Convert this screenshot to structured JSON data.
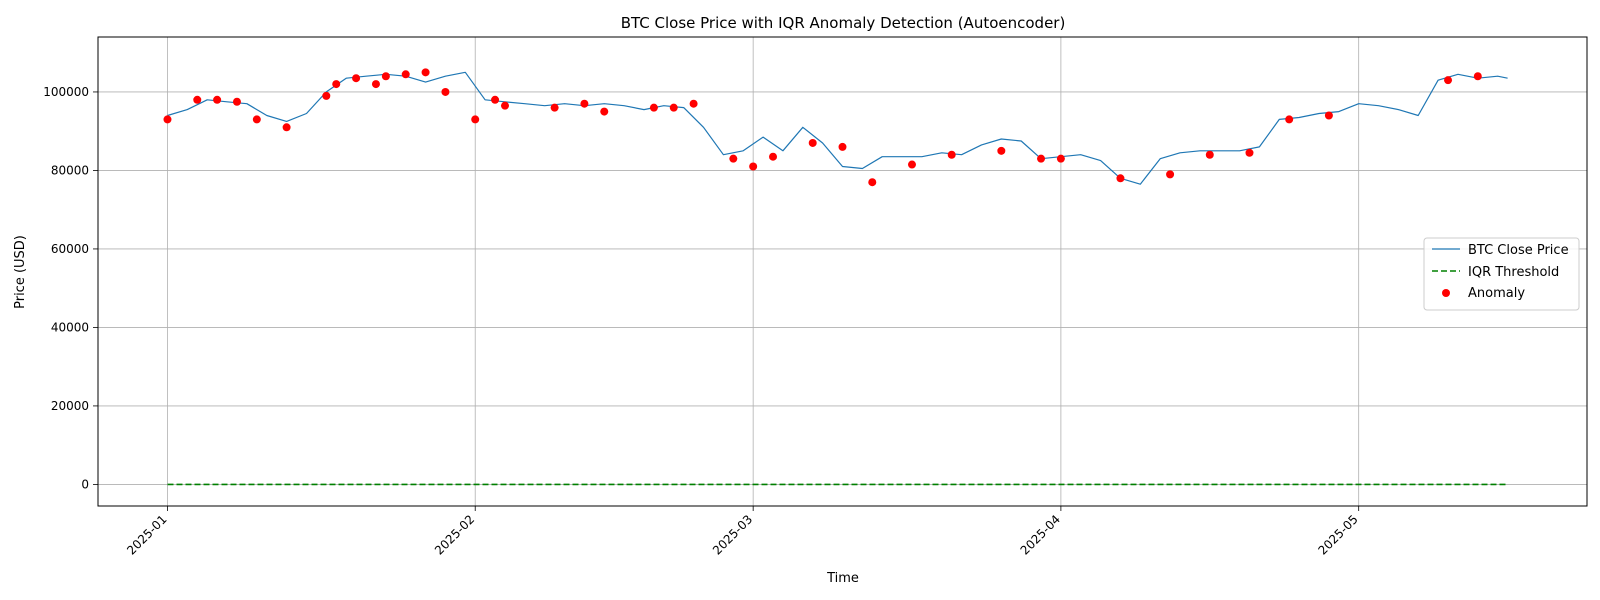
{
  "chart_data": {
    "type": "line",
    "title": "BTC Close Price with IQR Anomaly Detection (Autoencoder)",
    "xlabel": "Time",
    "ylabel": "Price (USD)",
    "xlim": [
      "2024-12-25",
      "2025-05-24"
    ],
    "ylim": [
      -5500,
      114000
    ],
    "x_ticks": [
      "2025-01-01",
      "2025-02-01",
      "2025-03-01",
      "2025-04-01",
      "2025-05-01"
    ],
    "x_tick_labels": [
      "2025-01",
      "2025-02",
      "2025-03",
      "2025-04",
      "2025-05"
    ],
    "y_ticks": [
      0,
      20000,
      40000,
      60000,
      80000,
      100000
    ],
    "y_tick_labels": [
      "0",
      "20000",
      "40000",
      "60000",
      "80000",
      "100000"
    ],
    "grid": true,
    "legend_position": "right",
    "colors": {
      "price": "#1f77b4",
      "threshold": "#008000",
      "anomaly": "#ff0000"
    },
    "series": [
      {
        "name": "BTC Close Price",
        "style": "line",
        "x": [
          "2025-01-01",
          "2025-01-03",
          "2025-01-05",
          "2025-01-07",
          "2025-01-09",
          "2025-01-11",
          "2025-01-13",
          "2025-01-15",
          "2025-01-17",
          "2025-01-19",
          "2025-01-21",
          "2025-01-23",
          "2025-01-25",
          "2025-01-27",
          "2025-01-29",
          "2025-01-31",
          "2025-02-02",
          "2025-02-04",
          "2025-02-06",
          "2025-02-08",
          "2025-02-10",
          "2025-02-12",
          "2025-02-14",
          "2025-02-16",
          "2025-02-18",
          "2025-02-20",
          "2025-02-22",
          "2025-02-24",
          "2025-02-26",
          "2025-02-28",
          "2025-03-02",
          "2025-03-04",
          "2025-03-06",
          "2025-03-08",
          "2025-03-10",
          "2025-03-12",
          "2025-03-14",
          "2025-03-16",
          "2025-03-18",
          "2025-03-20",
          "2025-03-22",
          "2025-03-24",
          "2025-03-26",
          "2025-03-28",
          "2025-03-30",
          "2025-04-01",
          "2025-04-03",
          "2025-04-05",
          "2025-04-07",
          "2025-04-09",
          "2025-04-11",
          "2025-04-13",
          "2025-04-15",
          "2025-04-17",
          "2025-04-19",
          "2025-04-21",
          "2025-04-23",
          "2025-04-25",
          "2025-04-27",
          "2025-04-29",
          "2025-05-01",
          "2025-05-03",
          "2025-05-05",
          "2025-05-07",
          "2025-05-09",
          "2025-05-11",
          "2025-05-13",
          "2025-05-15",
          "2025-05-16"
        ],
        "values": [
          94000,
          95500,
          98000,
          97500,
          97000,
          94000,
          92500,
          94500,
          100000,
          103500,
          104000,
          104500,
          104000,
          102500,
          104000,
          105000,
          98000,
          97500,
          97000,
          96500,
          97000,
          96500,
          97000,
          96500,
          95500,
          96500,
          96000,
          91000,
          84000,
          85000,
          88500,
          85000,
          91000,
          87000,
          81000,
          80500,
          83500,
          83500,
          83500,
          84500,
          84000,
          86500,
          88000,
          87500,
          83000,
          83500,
          84000,
          82500,
          78000,
          76500,
          83000,
          84500,
          85000,
          85000,
          85000,
          86000,
          93000,
          93500,
          94500,
          95000,
          97000,
          96500,
          95500,
          94000,
          103000,
          104500,
          103500,
          104000,
          103500
        ]
      },
      {
        "name": "IQR Threshold",
        "style": "dashed",
        "x": [
          "2025-01-01",
          "2025-05-16"
        ],
        "values": [
          0,
          0
        ]
      },
      {
        "name": "Anomaly",
        "style": "scatter",
        "x": [
          "2025-01-01",
          "2025-01-04",
          "2025-01-06",
          "2025-01-08",
          "2025-01-10",
          "2025-01-13",
          "2025-01-17",
          "2025-01-18",
          "2025-01-20",
          "2025-01-22",
          "2025-01-23",
          "2025-01-25",
          "2025-01-27",
          "2025-01-29",
          "2025-02-01",
          "2025-02-03",
          "2025-02-04",
          "2025-02-09",
          "2025-02-12",
          "2025-02-14",
          "2025-02-19",
          "2025-02-21",
          "2025-02-23",
          "2025-02-27",
          "2025-03-01",
          "2025-03-03",
          "2025-03-07",
          "2025-03-10",
          "2025-03-13",
          "2025-03-17",
          "2025-03-21",
          "2025-03-26",
          "2025-03-30",
          "2025-04-01",
          "2025-04-07",
          "2025-04-12",
          "2025-04-16",
          "2025-04-20",
          "2025-04-24",
          "2025-04-28",
          "2025-05-10",
          "2025-05-13"
        ],
        "values": [
          93000,
          98000,
          98000,
          97500,
          93000,
          91000,
          99000,
          102000,
          103500,
          102000,
          104000,
          104500,
          105000,
          100000,
          93000,
          98000,
          96500,
          96000,
          97000,
          95000,
          96000,
          96000,
          97000,
          83000,
          81000,
          83500,
          87000,
          86000,
          77000,
          81500,
          84000,
          85000,
          83000,
          83000,
          78000,
          79000,
          84000,
          84500,
          93000,
          94000,
          103000,
          104000
        ]
      }
    ]
  }
}
